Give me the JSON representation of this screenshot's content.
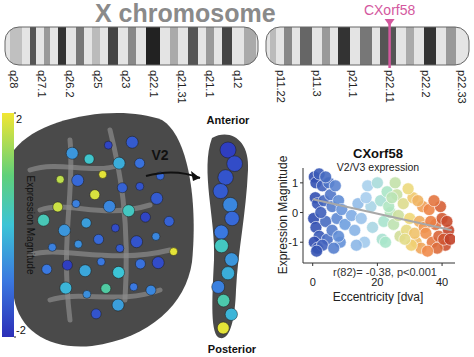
{
  "chart_data": {
    "type": "scatter",
    "title": "CXorf58",
    "subtitle": "V2/V3 expression",
    "x_label": "Eccentricity [dva]",
    "y_label": "Expression Magnitude",
    "annotation": "r(82)= -0.38, p<0.001",
    "x": [
      0.5,
      1,
      2,
      0.8,
      1.5,
      0.3,
      1,
      2,
      0.5,
      1.5,
      3,
      3.5,
      4,
      4.5,
      5,
      5.5,
      6,
      3,
      6,
      7,
      7.5,
      8,
      8.5,
      9,
      10,
      2.5,
      6.5,
      4,
      1.2,
      8,
      12,
      13,
      14,
      15,
      16,
      17,
      18,
      13.5,
      16.5,
      18.5,
      20,
      21,
      22,
      23,
      24,
      25,
      26,
      27,
      21.5,
      23.5,
      25.5,
      26.5,
      22.5,
      24.5,
      28,
      29,
      30,
      31,
      32,
      33,
      34,
      29.5,
      31.5,
      33.5,
      30.5,
      28.5,
      32.5,
      34.5,
      35,
      36,
      37,
      38,
      39,
      40,
      41,
      42,
      36.5,
      38.5,
      39.5,
      40.5,
      37.5,
      41.5,
      35.5,
      42.5
    ],
    "values": [
      1.2,
      1.0,
      1.3,
      0.5,
      0.3,
      -0.2,
      -0.5,
      -0.8,
      -1.0,
      -1.2,
      0.9,
      0.4,
      -0.3,
      -0.9,
      1.0,
      0.6,
      0.2,
      -1.1,
      -0.6,
      0.9,
      -0.2,
      0.4,
      -1.0,
      0.1,
      -0.4,
      0.0,
      -1.2,
      1.2,
      -1.3,
      -0.8,
      -0.1,
      -0.6,
      0.3,
      -0.2,
      -1.0,
      0.9,
      0.2,
      -1.1,
      0.5,
      -0.5,
      1.0,
      0.4,
      -0.3,
      0.7,
      0.0,
      -0.4,
      0.6,
      -0.8,
      -0.9,
      0.2,
      1.0,
      -0.1,
      -1.0,
      0.5,
      0.3,
      -0.6,
      -0.2,
      0.5,
      -1.0,
      -0.3,
      0.2,
      0.8,
      -0.7,
      -1.2,
      -1.1,
      -0.9,
      0.4,
      -0.5,
      -0.7,
      0.1,
      -1.0,
      -0.4,
      -0.8,
      -0.2,
      -1.1,
      -0.6,
      -0.3,
      -1.2,
      0.2,
      -0.9,
      0.4,
      -0.3,
      -1.3,
      -0.9
    ],
    "xlim": [
      -3,
      44
    ],
    "ylim": [
      -1.7,
      1.5
    ],
    "xticks": [
      0,
      20,
      40
    ],
    "yticks": [
      1,
      0,
      -1
    ],
    "trend_line": {
      "x": [
        0,
        43
      ],
      "y": [
        0.45,
        -0.6
      ]
    },
    "marker": "circle",
    "grid": false
  },
  "ideogram": {
    "title": "X chromosome",
    "gene": "CXorf58",
    "q_bands": [
      "q28",
      "q27.1",
      "q26.2",
      "q25",
      "q23",
      "q22.1",
      "q21.31",
      "q21.1",
      "q12"
    ],
    "p_bands": [
      "p11.22",
      "p11.3",
      "p21.1",
      "p22.11",
      "p22.2",
      "p22.33"
    ],
    "gene_band_index": 3
  },
  "brain": {
    "colorbar": {
      "label": "Expression Magnitude",
      "range": [
        -2,
        2
      ],
      "ticks": [
        2,
        -2
      ]
    },
    "surface_values": [
      -1.6,
      -1.2,
      -0.8,
      -1.4,
      -0.5,
      0.2,
      -1.0,
      1.8,
      -1.5,
      -0.7,
      -1.3,
      0.0,
      -0.9,
      -1.7,
      -0.4,
      1.9,
      -1.1,
      -0.6,
      -1.5,
      0.5,
      -1.2,
      -0.8,
      -1.8,
      -0.3,
      -1.0,
      1.7,
      -1.4,
      -0.7,
      0.1,
      -1.6,
      -0.9,
      -1.1,
      -0.5,
      1.6,
      -1.3,
      -0.2,
      -1.7,
      -0.8,
      0.3,
      -1.2,
      -1.5,
      -0.6,
      1.9,
      -1.0,
      -1.4
    ],
    "region": "V2",
    "anterior": "Anterior",
    "posterior": "Posterior",
    "v2_values": [
      -1.8,
      -1.6,
      -1.5,
      -1.4,
      -0.8,
      -1.2,
      -1.0,
      0.2,
      -0.6,
      -0.3,
      -0.9,
      0.4,
      -0.2,
      1.9
    ]
  }
}
